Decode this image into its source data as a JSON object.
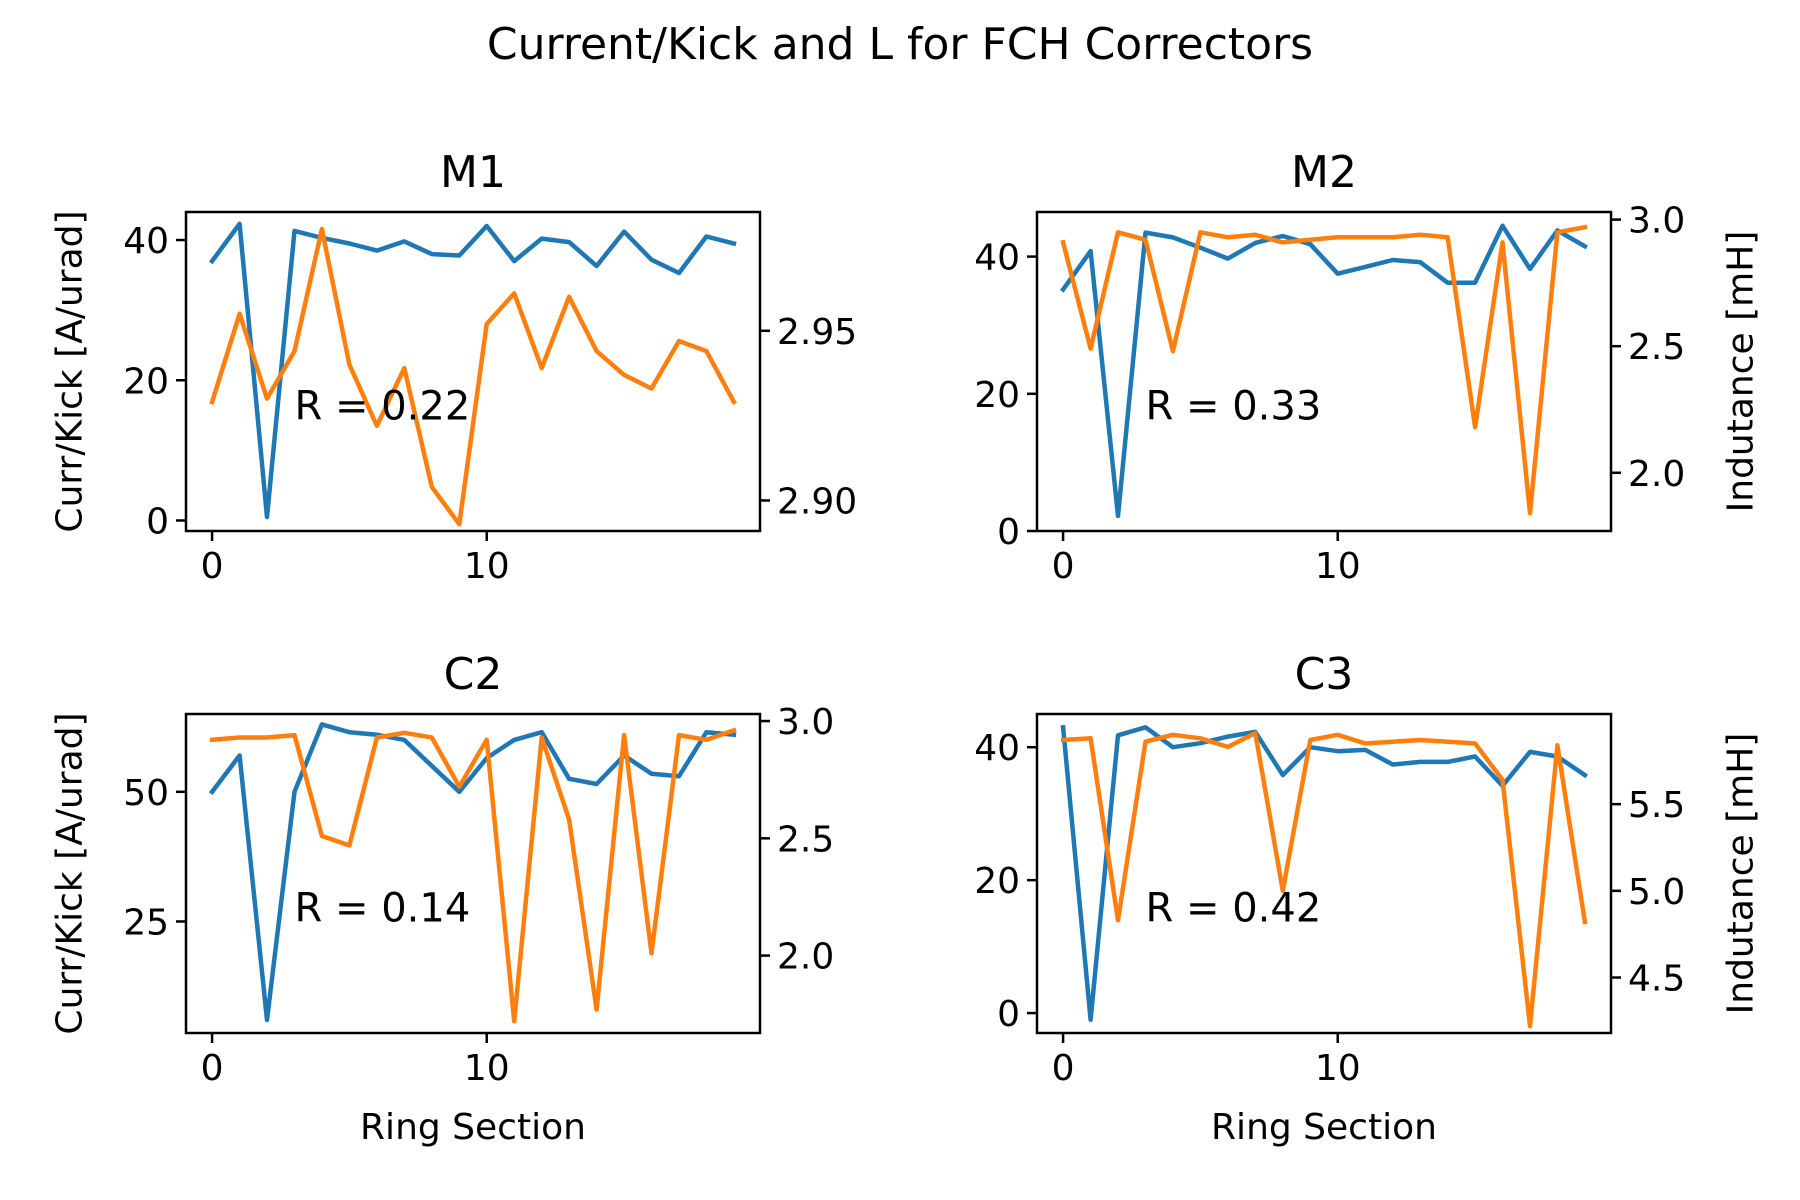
{
  "figure": {
    "suptitle": "Current/Kick and L for FCH Correctors",
    "series_colors": [
      "#1f77b4",
      "#ff7f0e"
    ]
  },
  "chart_data": [
    {
      "type": "line",
      "title": "M1",
      "xlabel": "",
      "ylabel": "Curr/Kick [A/urad]",
      "ylabel_right": "",
      "annotation": "R = 0.22",
      "xlim": [
        -0.95,
        19.95
      ],
      "ylim": [
        -1.5,
        44
      ],
      "ylim_right": [
        2.891,
        2.985
      ],
      "xticks": [
        0,
        10
      ],
      "yticks": [
        0,
        20,
        40
      ],
      "yticks_right": [
        2.9,
        2.95
      ],
      "ytick_labels_right": [
        "2.90",
        "2.95"
      ],
      "x": [
        0,
        1,
        2,
        3,
        4,
        5,
        6,
        7,
        8,
        9,
        10,
        11,
        12,
        13,
        14,
        15,
        16,
        17,
        18,
        19
      ],
      "series": [
        {
          "axis": "left",
          "color": "#1f77b4",
          "values": [
            37,
            42.3,
            0.5,
            41.3,
            40.3,
            39.5,
            38.5,
            39.8,
            38,
            37.8,
            42,
            37,
            40.2,
            39.7,
            36.3,
            41.2,
            37.2,
            35.3,
            40.5,
            39.5
          ]
        },
        {
          "axis": "right",
          "color": "#ff7f0e",
          "values": [
            2.929,
            2.955,
            2.93,
            2.944,
            2.98,
            2.94,
            2.922,
            2.939,
            2.904,
            2.893,
            2.952,
            2.961,
            2.939,
            2.96,
            2.944,
            2.937,
            2.933,
            2.947,
            2.944,
            2.929
          ]
        }
      ]
    },
    {
      "type": "line",
      "title": "M2",
      "xlabel": "",
      "ylabel": "",
      "ylabel_right": "Indutance [mH]",
      "annotation": "R = 0.33",
      "xlim": [
        -0.95,
        19.95
      ],
      "ylim": [
        0,
        46.5
      ],
      "ylim_right": [
        1.77,
        3.03
      ],
      "xticks": [
        0,
        10
      ],
      "yticks": [
        0,
        20,
        40
      ],
      "yticks_right": [
        2.0,
        2.5,
        3.0
      ],
      "ytick_labels_right": [
        "2.0",
        "2.5",
        "3.0"
      ],
      "x": [
        0,
        1,
        2,
        3,
        4,
        5,
        6,
        7,
        8,
        9,
        10,
        11,
        12,
        13,
        14,
        15,
        16,
        17,
        18,
        19
      ],
      "series": [
        {
          "axis": "left",
          "color": "#1f77b4",
          "values": [
            35.2,
            40.8,
            2.2,
            43.5,
            42.8,
            41.3,
            39.7,
            42,
            43,
            41.8,
            37.5,
            38.5,
            39.5,
            39.2,
            36.2,
            36.2,
            44.5,
            38.2,
            43.8,
            41.5
          ]
        },
        {
          "axis": "right",
          "color": "#ff7f0e",
          "values": [
            2.91,
            2.49,
            2.95,
            2.92,
            2.48,
            2.95,
            2.93,
            2.94,
            2.91,
            2.92,
            2.93,
            2.93,
            2.93,
            2.94,
            2.93,
            2.18,
            2.91,
            1.84,
            2.95,
            2.97
          ]
        }
      ]
    },
    {
      "type": "line",
      "title": "C2",
      "xlabel": "Ring Section",
      "ylabel": "Curr/Kick [A/urad]",
      "ylabel_right": "",
      "annotation": "R = 0.14",
      "xlim": [
        -0.95,
        19.95
      ],
      "ylim": [
        3.5,
        65
      ],
      "ylim_right": [
        1.67,
        3.03
      ],
      "xticks": [
        0,
        10
      ],
      "yticks": [
        25,
        50
      ],
      "yticks_right": [
        2.0,
        2.5,
        3.0
      ],
      "ytick_labels_right": [
        "2.0",
        "2.5",
        "3.0"
      ],
      "x": [
        0,
        1,
        2,
        3,
        4,
        5,
        6,
        7,
        8,
        9,
        10,
        11,
        12,
        13,
        14,
        15,
        16,
        17,
        18,
        19
      ],
      "series": [
        {
          "axis": "left",
          "color": "#1f77b4",
          "values": [
            50,
            57,
            6,
            50,
            63,
            61.5,
            61,
            60,
            55,
            50,
            56.5,
            60,
            61.5,
            52.5,
            51.5,
            57,
            53.5,
            53,
            61.5,
            61
          ]
        },
        {
          "axis": "right",
          "color": "#ff7f0e",
          "values": [
            2.92,
            2.93,
            2.93,
            2.94,
            2.51,
            2.47,
            2.93,
            2.95,
            2.93,
            2.72,
            2.92,
            1.72,
            2.93,
            2.58,
            1.77,
            2.94,
            2.01,
            2.94,
            2.92,
            2.96
          ]
        }
      ]
    },
    {
      "type": "line",
      "title": "C3",
      "xlabel": "Ring Section",
      "ylabel": "",
      "ylabel_right": "Indutance [mH]",
      "annotation": "R = 0.42",
      "xlim": [
        -0.95,
        19.95
      ],
      "ylim": [
        -3,
        45
      ],
      "ylim_right": [
        4.18,
        6.02
      ],
      "xticks": [
        0,
        10
      ],
      "yticks": [
        0,
        20,
        40
      ],
      "yticks_right": [
        4.5,
        5.0,
        5.5
      ],
      "ytick_labels_right": [
        "4.5",
        "5.0",
        "5.5"
      ],
      "x": [
        0,
        1,
        2,
        3,
        4,
        5,
        6,
        7,
        8,
        9,
        10,
        11,
        12,
        13,
        14,
        15,
        16,
        17,
        18,
        19
      ],
      "series": [
        {
          "axis": "left",
          "color": "#1f77b4",
          "values": [
            43,
            -1,
            41.8,
            43,
            40,
            40.6,
            41.6,
            42.3,
            35.8,
            40,
            39.4,
            39.6,
            37.4,
            37.8,
            37.8,
            38.6,
            34.2,
            39.3,
            38.6,
            35.8
          ]
        },
        {
          "axis": "right",
          "color": "#ff7f0e",
          "values": [
            5.87,
            5.88,
            4.83,
            5.86,
            5.9,
            5.88,
            5.83,
            5.91,
            5.0,
            5.87,
            5.9,
            5.85,
            5.86,
            5.87,
            5.86,
            5.85,
            5.64,
            4.22,
            5.84,
            4.82
          ]
        }
      ]
    }
  ]
}
